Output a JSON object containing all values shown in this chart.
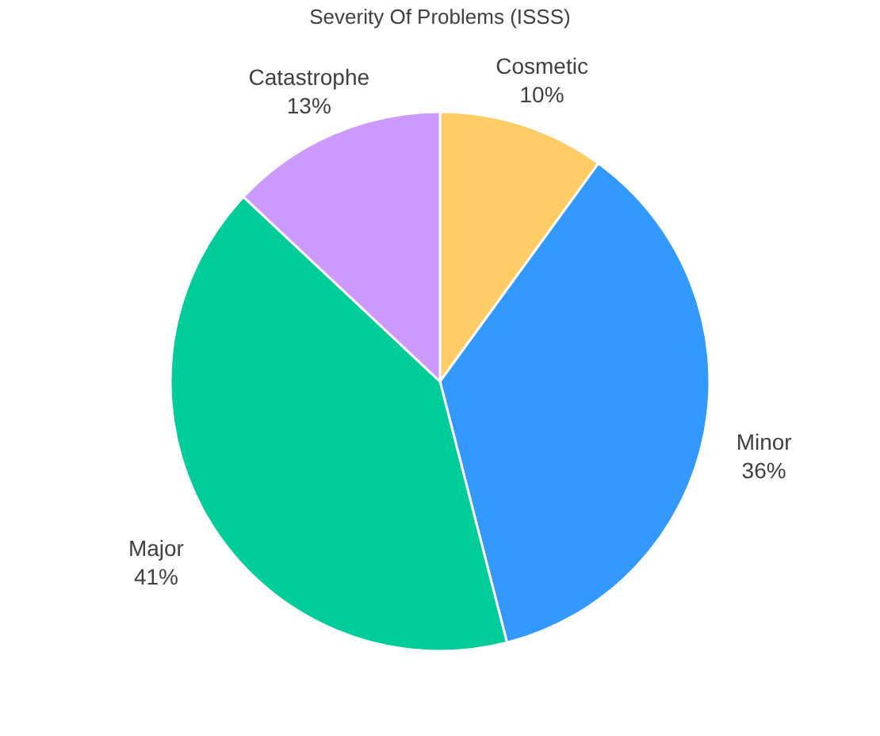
{
  "chart_data": {
    "type": "pie",
    "title": "Severity Of Problems (ISSS)",
    "categories": [
      "Cosmetic",
      "Minor",
      "Major",
      "Catastrophe"
    ],
    "values": [
      10,
      36,
      41,
      13
    ],
    "colors": [
      "#ffcc66",
      "#3399ff",
      "#00cc99",
      "#cc99ff"
    ],
    "value_labels": [
      "10%",
      "36%",
      "41%",
      "13%"
    ],
    "legend": false
  }
}
